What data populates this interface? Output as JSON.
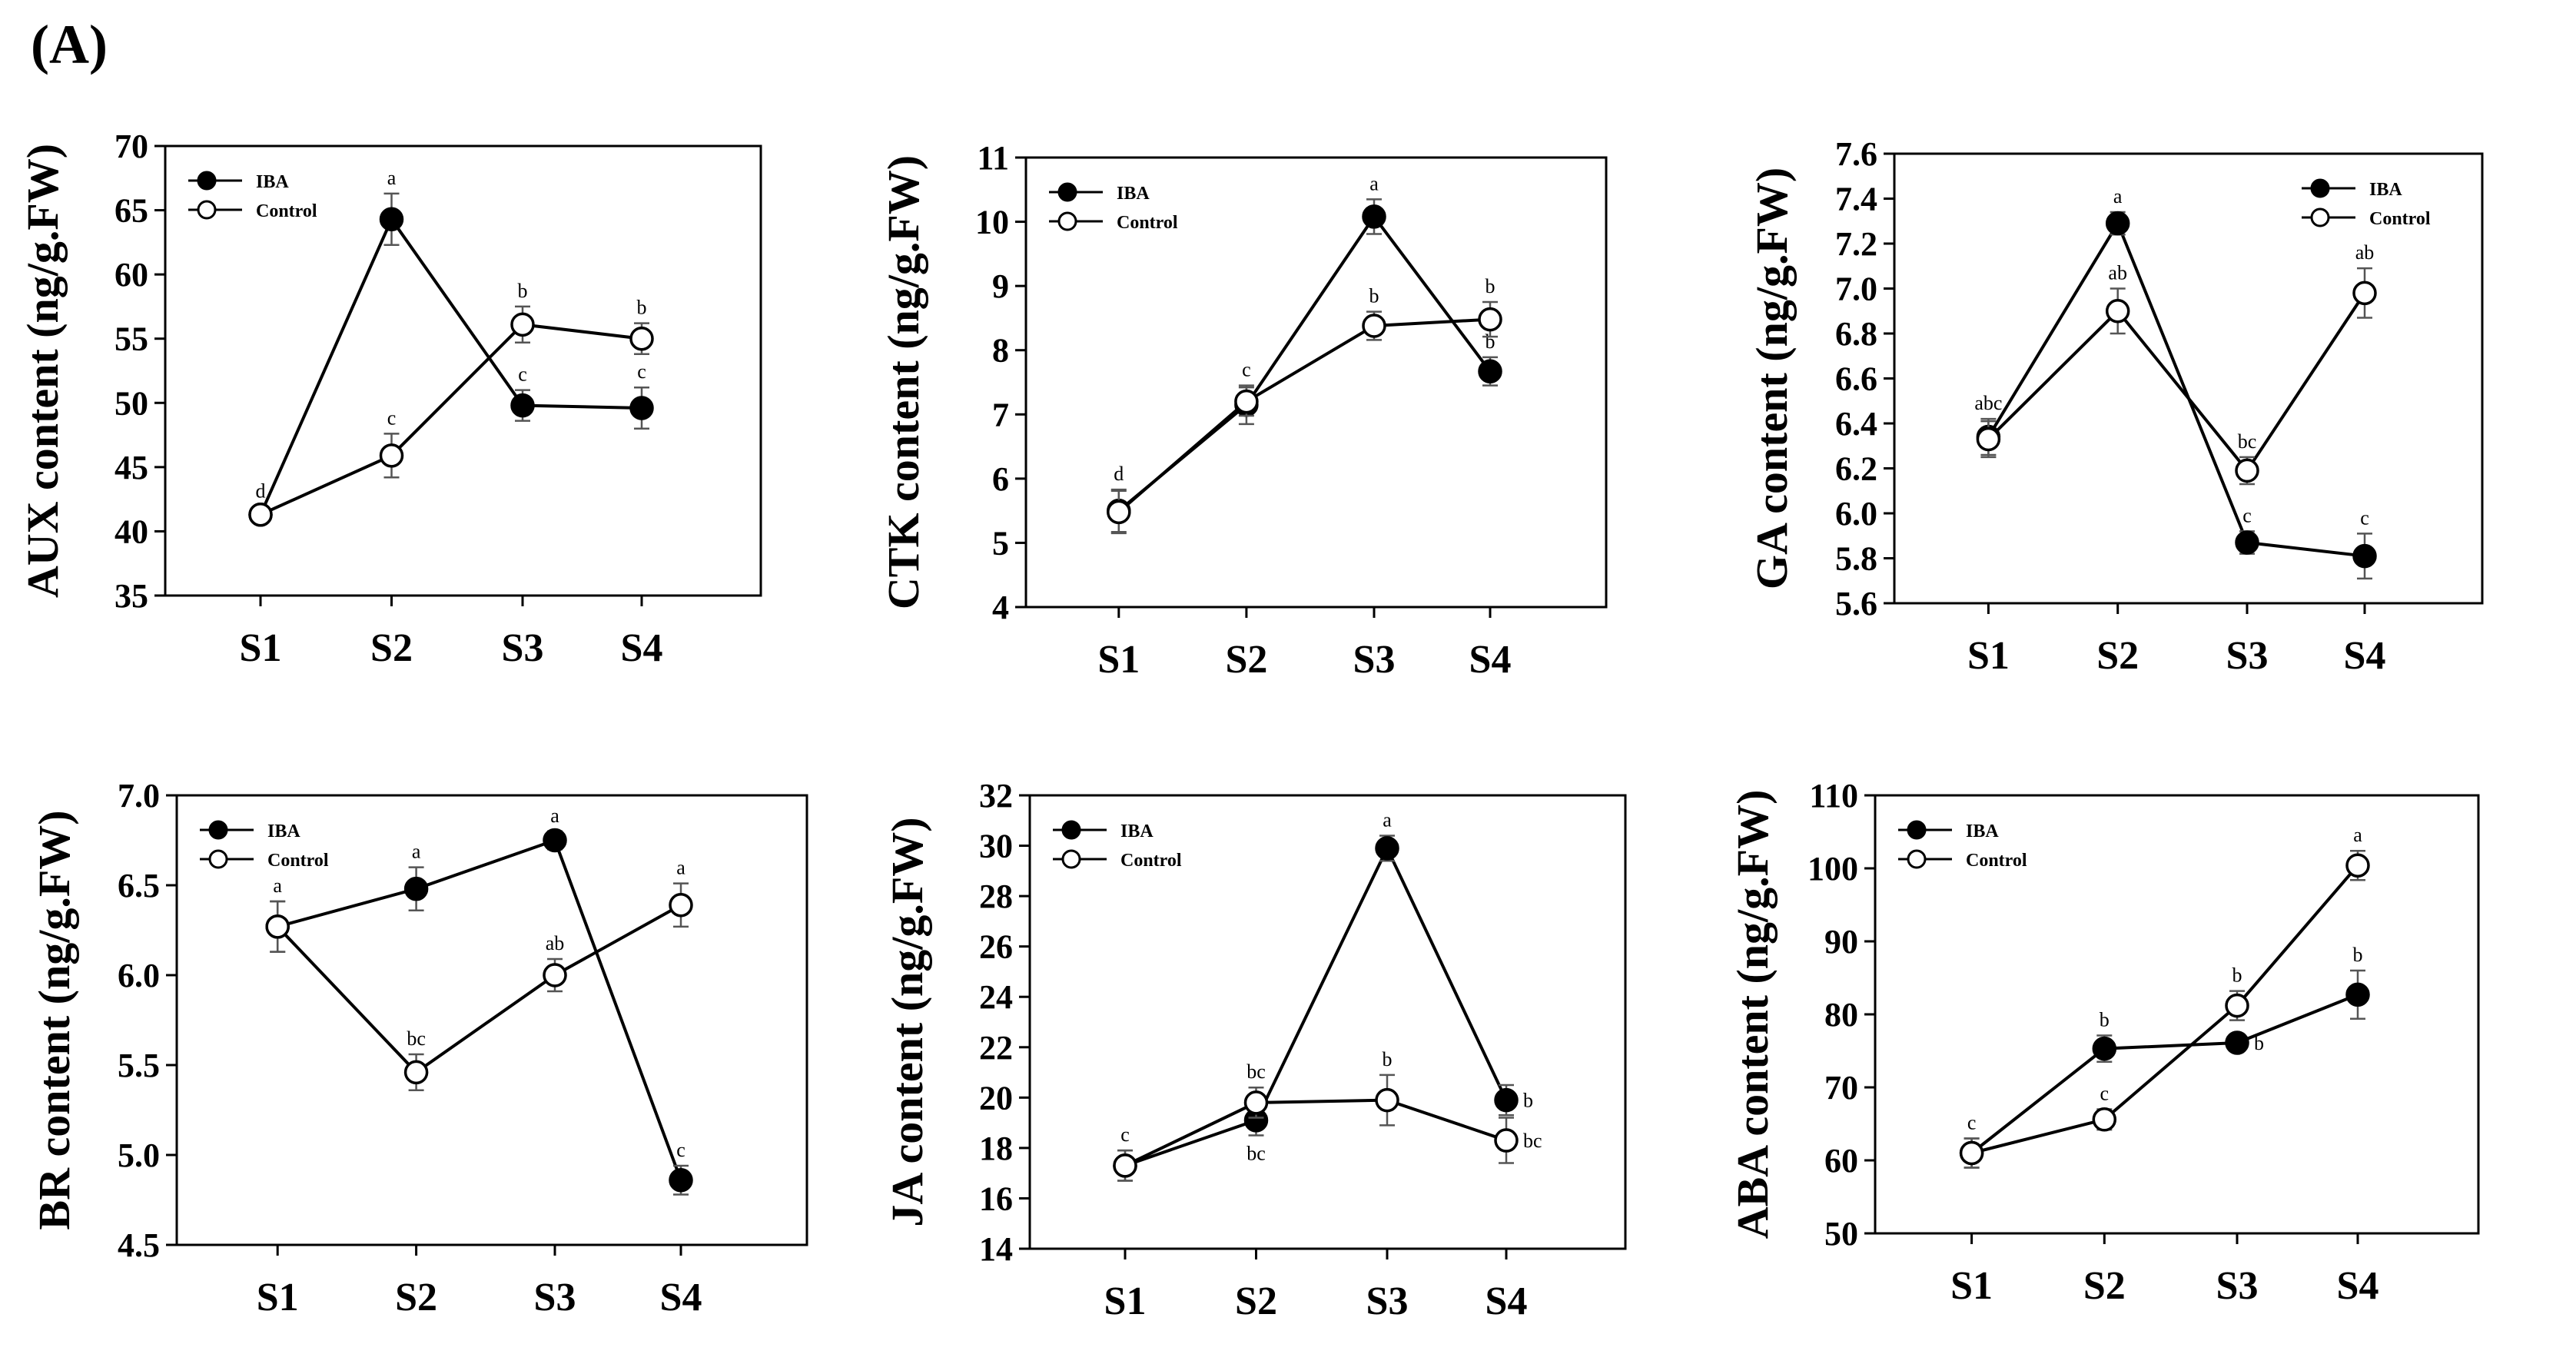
{
  "figure": {
    "panel_label": "(A)"
  },
  "chart_data": [
    {
      "type": "line",
      "ylabel": "AUX content (ng/g.FW)",
      "categories": [
        "S1",
        "S2",
        "S3",
        "S4"
      ],
      "ylim": [
        35,
        70
      ],
      "yticks": [
        35,
        40,
        45,
        50,
        55,
        60,
        65,
        70
      ],
      "series": [
        {
          "name": "IBA",
          "values": [
            41.3,
            64.3,
            49.8,
            49.6
          ],
          "errors": [
            0.6,
            2.0,
            1.2,
            1.6
          ],
          "letters": [
            "d",
            "a",
            "c",
            "c"
          ],
          "letter_pos": [
            "above",
            "above",
            "above",
            "above"
          ]
        },
        {
          "name": "Control",
          "values": [
            41.3,
            45.9,
            56.1,
            55.0
          ],
          "errors": [
            0.6,
            1.7,
            1.4,
            1.2
          ],
          "letters": [
            "",
            "c",
            "b",
            "b"
          ],
          "letter_pos": [
            "above",
            "above",
            "above",
            "above"
          ]
        }
      ],
      "legend": "top-left"
    },
    {
      "type": "line",
      "ylabel": "CTK content (ng/g.FW)",
      "categories": [
        "S1",
        "S2",
        "S3",
        "S4"
      ],
      "ylim": [
        4,
        11
      ],
      "yticks": [
        4,
        5,
        6,
        7,
        8,
        9,
        10,
        11
      ],
      "series": [
        {
          "name": "IBA",
          "values": [
            5.5,
            7.15,
            10.08,
            7.67
          ],
          "errors": [
            0.33,
            0.3,
            0.27,
            0.22
          ],
          "letters": [
            "d",
            "c",
            "a",
            "b"
          ],
          "letter_pos": [
            "above",
            "above",
            "above",
            "above"
          ]
        },
        {
          "name": "Control",
          "values": [
            5.48,
            7.2,
            8.38,
            8.48
          ],
          "errors": [
            0.33,
            0.22,
            0.22,
            0.27
          ],
          "letters": [
            "",
            "",
            "b",
            "b"
          ],
          "letter_pos": [
            "above",
            "above",
            "above",
            "above"
          ]
        }
      ],
      "legend": "top-left"
    },
    {
      "type": "line",
      "ylabel": "GA content (ng/g.FW)",
      "categories": [
        "S1",
        "S2",
        "S3",
        "S4"
      ],
      "ylim": [
        5.6,
        7.6
      ],
      "yticks": [
        5.6,
        5.8,
        6.0,
        6.2,
        6.4,
        6.6,
        6.8,
        7.0,
        7.2,
        7.4,
        7.6
      ],
      "series": [
        {
          "name": "IBA",
          "values": [
            6.34,
            7.29,
            5.87,
            5.81
          ],
          "errors": [
            0.08,
            0.05,
            0.05,
            0.1
          ],
          "letters": [
            "abc",
            "a",
            "c",
            "c"
          ],
          "letter_pos": [
            "above",
            "above",
            "above",
            "above"
          ]
        },
        {
          "name": "Control",
          "values": [
            6.33,
            6.9,
            6.19,
            6.98
          ],
          "errors": [
            0.08,
            0.1,
            0.06,
            0.11
          ],
          "letters": [
            "",
            "ab",
            "bc",
            "ab"
          ],
          "letter_pos": [
            "above",
            "above",
            "above",
            "above"
          ]
        }
      ],
      "legend": "top-right"
    },
    {
      "type": "line",
      "ylabel": "BR content (ng/g.FW)",
      "categories": [
        "S1",
        "S2",
        "S3",
        "S4"
      ],
      "ylim": [
        4.5,
        7.0
      ],
      "yticks": [
        4.5,
        5.0,
        5.5,
        6.0,
        6.5,
        7.0
      ],
      "series": [
        {
          "name": "IBA",
          "values": [
            6.27,
            6.48,
            6.75,
            4.86
          ],
          "errors": [
            0.14,
            0.12,
            0.05,
            0.08
          ],
          "letters": [
            "a",
            "a",
            "a",
            "c"
          ],
          "letter_pos": [
            "above",
            "above",
            "above",
            "above"
          ]
        },
        {
          "name": "Control",
          "values": [
            6.27,
            5.46,
            6.0,
            6.39
          ],
          "errors": [
            0.14,
            0.1,
            0.09,
            0.12
          ],
          "letters": [
            "",
            "bc",
            "ab",
            "a"
          ],
          "letter_pos": [
            "above",
            "above",
            "above",
            "above"
          ]
        }
      ],
      "legend": "top-left"
    },
    {
      "type": "line",
      "ylabel": "JA content (ng/g.FW)",
      "categories": [
        "S1",
        "S2",
        "S3",
        "S4"
      ],
      "ylim": [
        14,
        32
      ],
      "yticks": [
        14,
        16,
        18,
        20,
        22,
        24,
        26,
        28,
        30,
        32
      ],
      "series": [
        {
          "name": "IBA",
          "values": [
            17.3,
            19.1,
            29.9,
            19.9
          ],
          "errors": [
            0.6,
            0.6,
            0.5,
            0.6
          ],
          "letters": [
            "c",
            "bc",
            "a",
            "b"
          ],
          "letter_pos": [
            "above",
            "below",
            "above",
            "right"
          ]
        },
        {
          "name": "Control",
          "values": [
            17.3,
            19.8,
            19.9,
            18.3
          ],
          "errors": [
            0.6,
            0.6,
            1.0,
            0.9
          ],
          "letters": [
            "",
            "bc",
            "b",
            "bc"
          ],
          "letter_pos": [
            "above",
            "above",
            "above",
            "right"
          ]
        }
      ],
      "legend": "top-left"
    },
    {
      "type": "line",
      "ylabel": "ABA content (ng/g.FW)",
      "categories": [
        "S1",
        "S2",
        "S3",
        "S4"
      ],
      "ylim": [
        50,
        110
      ],
      "yticks": [
        50,
        60,
        70,
        80,
        90,
        100,
        110
      ],
      "series": [
        {
          "name": "IBA",
          "values": [
            61.0,
            75.3,
            76.1,
            82.7
          ],
          "errors": [
            2.0,
            1.8,
            1.0,
            3.3
          ],
          "letters": [
            "c",
            "b",
            "b",
            "b"
          ],
          "letter_pos": [
            "above",
            "above",
            "right",
            "above"
          ]
        },
        {
          "name": "Control",
          "values": [
            61.0,
            65.6,
            81.2,
            100.4
          ],
          "errors": [
            2.0,
            1.4,
            2.0,
            2.0
          ],
          "letters": [
            "",
            "c",
            "b",
            "a"
          ],
          "letter_pos": [
            "above",
            "above",
            "above",
            "above"
          ]
        }
      ],
      "legend": "top-left"
    }
  ]
}
